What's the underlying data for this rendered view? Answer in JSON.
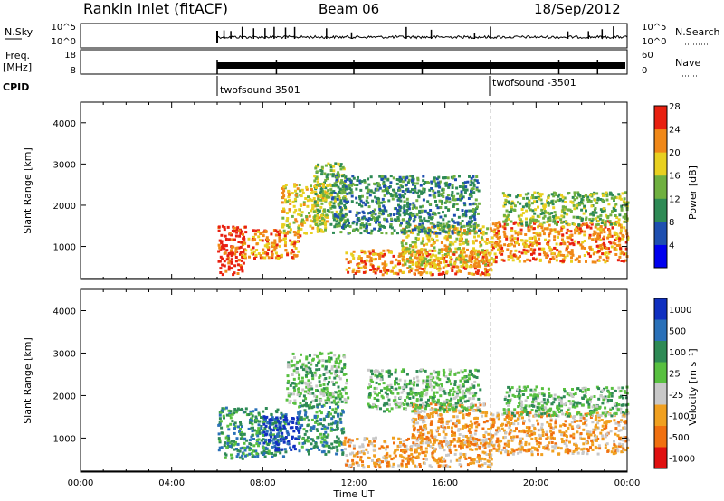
{
  "header": {
    "site": "Rankin Inlet (fitACF)",
    "beam": "Beam 06",
    "date": "18/Sep/2012"
  },
  "chart_data": [
    {
      "type": "line",
      "panel": "noise",
      "left_label": "N.Sky",
      "right_label": "N.Search",
      "left_ticks": [
        "10^5",
        "10^0"
      ],
      "right_ticks": [
        "10^5",
        "10^0"
      ],
      "x_start_hour": 6.0,
      "x_end_hour": 24.0,
      "spikes_hours": [
        6.3,
        6.6,
        7.1,
        7.6,
        8.1,
        8.5,
        9.0,
        9.4,
        10.8,
        11.9,
        14.3,
        15.4,
        17.3,
        18.0,
        21.4,
        22.3,
        22.9,
        23.4
      ]
    },
    {
      "type": "line",
      "panel": "frequency",
      "left_label": "Freq.",
      "left_unit": "[MHz]",
      "right_label": "Nave",
      "left_ticks": [
        "18",
        "8"
      ],
      "right_ticks": [
        "60",
        "0"
      ],
      "x_start_hour": 6.0,
      "x_end_hour": 24.0,
      "marker_hours": [
        6.0,
        8.6,
        12.0,
        15.0,
        18.0,
        21.0,
        22.7
      ]
    },
    {
      "type": "table",
      "panel": "cpid",
      "label": "CPID",
      "segments": [
        {
          "name": "twofsound 3501",
          "start_hour": 6.0
        },
        {
          "name": "twofsound -3501",
          "start_hour": 18.0
        }
      ]
    },
    {
      "type": "heatmap",
      "panel": "power",
      "ylabel": "Slant Range [km]",
      "yticks": [
        1000,
        2000,
        3000,
        4000
      ],
      "ylim": [
        200,
        4500
      ],
      "xlim_hours": [
        0,
        24
      ],
      "colorbar": {
        "label": "Power [dB]",
        "ticks": [
          "4",
          "8",
          "12",
          "16",
          "20",
          "24",
          "28"
        ],
        "colors": [
          "#0000ee",
          "#1e4fb0",
          "#2e8a55",
          "#6fb040",
          "#e8d020",
          "#f08818",
          "#e82010"
        ]
      },
      "echo_regions": [
        {
          "t0": 6.0,
          "t1": 7.2,
          "r0": 300,
          "r1": 1500,
          "level": 28
        },
        {
          "t0": 7.0,
          "t1": 9.6,
          "r0": 700,
          "r1": 1400,
          "level": 24
        },
        {
          "t0": 8.8,
          "t1": 10.8,
          "r0": 1300,
          "r1": 2500,
          "level": 20
        },
        {
          "t0": 10.2,
          "t1": 11.6,
          "r0": 1500,
          "r1": 3000,
          "level": 16
        },
        {
          "t0": 11.6,
          "t1": 18.0,
          "r0": 300,
          "r1": 900,
          "level": 24
        },
        {
          "t0": 14.0,
          "t1": 18.0,
          "r0": 500,
          "r1": 1500,
          "level": 20
        },
        {
          "t0": 11.0,
          "t1": 17.5,
          "r0": 1300,
          "r1": 2700,
          "level": 12
        },
        {
          "t0": 18.0,
          "t1": 24.0,
          "r0": 600,
          "r1": 1600,
          "level": 24
        },
        {
          "t0": 18.5,
          "t1": 24.0,
          "r0": 1500,
          "r1": 2300,
          "level": 16
        }
      ]
    },
    {
      "type": "heatmap",
      "panel": "velocity",
      "ylabel": "Slant Range [km]",
      "xlabel": "Time UT",
      "yticks": [
        1000,
        2000,
        3000,
        4000
      ],
      "ylim": [
        200,
        4500
      ],
      "xlim_hours": [
        0,
        24
      ],
      "xticks": [
        "00:00",
        "04:00",
        "08:00",
        "12:00",
        "16:00",
        "20:00",
        "00:00"
      ],
      "colorbar": {
        "label": "Velocity [m s⁻¹]",
        "ticks": [
          "1000",
          "500",
          "100",
          "25",
          "-25",
          "-100",
          "-500",
          "-1000"
        ],
        "colors": [
          "#1030c0",
          "#2a70b8",
          "#2e8a55",
          "#58c040",
          "#c8c8c8",
          "#f0a020",
          "#f07010",
          "#e01010"
        ]
      },
      "echo_regions": [
        {
          "t0": 6.0,
          "t1": 9.0,
          "r0": 500,
          "r1": 1700,
          "level": 100
        },
        {
          "t0": 8.0,
          "t1": 9.6,
          "r0": 700,
          "r1": 1500,
          "level": 1000
        },
        {
          "t0": 9.5,
          "t1": 11.5,
          "r0": 600,
          "r1": 1800,
          "level": 100
        },
        {
          "t0": 9.0,
          "t1": 11.7,
          "r0": 1800,
          "r1": 3000,
          "level": 25
        },
        {
          "t0": 11.5,
          "t1": 18.0,
          "r0": 300,
          "r1": 1000,
          "level": -100
        },
        {
          "t0": 14.5,
          "t1": 18.0,
          "r0": 800,
          "r1": 1800,
          "level": -100
        },
        {
          "t0": 12.5,
          "t1": 17.5,
          "r0": 1600,
          "r1": 2600,
          "level": 25
        },
        {
          "t0": 18.0,
          "t1": 24.0,
          "r0": 600,
          "r1": 1600,
          "level": -100
        },
        {
          "t0": 18.5,
          "t1": 24.0,
          "r0": 1500,
          "r1": 2200,
          "level": 25
        }
      ]
    }
  ]
}
